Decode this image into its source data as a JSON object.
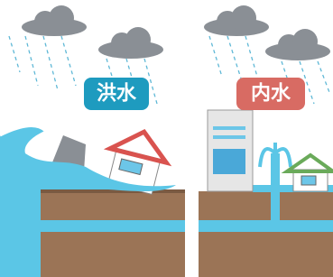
{
  "panels": [
    {
      "label": "洪水"
    },
    {
      "label": "内水"
    }
  ]
}
